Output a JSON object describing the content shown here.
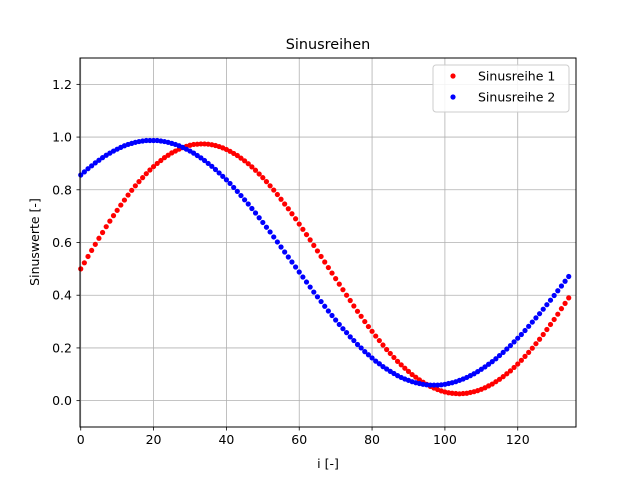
{
  "chart_data": {
    "type": "scatter",
    "title": "Sinusreihen",
    "xlabel": "i [-]",
    "ylabel": "Sinuswerte [-]",
    "xlim": [
      -0.2,
      136
    ],
    "ylim": [
      -0.1,
      1.3
    ],
    "xticks": [
      0,
      20,
      40,
      60,
      80,
      100,
      120
    ],
    "xtick_labels": [
      "0",
      "20",
      "40",
      "60",
      "80",
      "100",
      "120"
    ],
    "yticks": [
      0.0,
      0.2,
      0.4,
      0.6,
      0.8,
      1.0,
      1.2
    ],
    "ytick_labels": [
      "0.0",
      "0.2",
      "0.4",
      "0.6",
      "0.8",
      "1.0",
      "1.2"
    ],
    "grid": true,
    "legend_position": "top-right",
    "point_count": 135,
    "x": [
      0,
      1,
      2,
      3,
      4,
      5,
      6,
      7,
      8,
      9,
      10,
      11,
      12,
      13,
      14,
      15,
      16,
      17,
      18,
      19,
      20,
      21,
      22,
      23,
      24,
      25,
      26,
      27,
      28,
      29,
      30,
      31,
      32,
      33,
      34,
      35,
      36,
      37,
      38,
      39,
      40,
      41,
      42,
      43,
      44,
      45,
      46,
      47,
      48,
      49,
      50,
      51,
      52,
      53,
      54,
      55,
      56,
      57,
      58,
      59,
      60,
      61,
      62,
      63,
      64,
      65,
      66,
      67,
      68,
      69,
      70,
      71,
      72,
      73,
      74,
      75,
      76,
      77,
      78,
      79,
      80,
      81,
      82,
      83,
      84,
      85,
      86,
      87,
      88,
      89,
      90,
      91,
      92,
      93,
      94,
      95,
      96,
      97,
      98,
      99,
      100,
      101,
      102,
      103,
      104,
      105,
      106,
      107,
      108,
      109,
      110,
      111,
      112,
      113,
      114,
      115,
      116,
      117,
      118,
      119,
      120,
      121,
      122,
      123,
      124,
      125,
      126,
      127,
      128,
      129,
      130,
      131,
      132,
      133,
      134
    ],
    "series": [
      {
        "name": "Sinusreihe 1",
        "color": "#ff0000",
        "values": [
          0.5,
          0.523,
          0.547,
          0.57,
          0.593,
          0.616,
          0.638,
          0.66,
          0.681,
          0.702,
          0.722,
          0.742,
          0.761,
          0.78,
          0.798,
          0.815,
          0.831,
          0.846,
          0.861,
          0.875,
          0.888,
          0.9,
          0.911,
          0.922,
          0.931,
          0.94,
          0.947,
          0.954,
          0.96,
          0.965,
          0.969,
          0.972,
          0.973,
          0.974,
          0.974,
          0.973,
          0.971,
          0.968,
          0.964,
          0.959,
          0.953,
          0.946,
          0.938,
          0.93,
          0.92,
          0.91,
          0.899,
          0.887,
          0.874,
          0.86,
          0.846,
          0.831,
          0.815,
          0.799,
          0.782,
          0.764,
          0.746,
          0.728,
          0.709,
          0.69,
          0.67,
          0.65,
          0.63,
          0.61,
          0.589,
          0.568,
          0.547,
          0.526,
          0.505,
          0.484,
          0.463,
          0.442,
          0.421,
          0.4,
          0.38,
          0.359,
          0.339,
          0.32,
          0.3,
          0.281,
          0.263,
          0.245,
          0.228,
          0.211,
          0.194,
          0.179,
          0.164,
          0.149,
          0.136,
          0.123,
          0.111,
          0.099,
          0.089,
          0.079,
          0.07,
          0.062,
          0.054,
          0.048,
          0.042,
          0.037,
          0.033,
          0.03,
          0.028,
          0.027,
          0.026,
          0.027,
          0.028,
          0.031,
          0.034,
          0.038,
          0.043,
          0.049,
          0.056,
          0.063,
          0.072,
          0.081,
          0.091,
          0.102,
          0.113,
          0.126,
          0.139,
          0.153,
          0.168,
          0.183,
          0.199,
          0.216,
          0.233,
          0.251,
          0.27,
          0.289,
          0.308,
          0.328,
          0.349,
          0.369,
          0.39
        ],
        "values_note": ""
      },
      {
        "name": "Sinusreihe 2",
        "color": "#0000ff",
        "values": [
          0.856,
          0.868,
          0.88,
          0.891,
          0.902,
          0.912,
          0.922,
          0.931,
          0.939,
          0.947,
          0.954,
          0.961,
          0.967,
          0.972,
          0.976,
          0.98,
          0.983,
          0.985,
          0.987,
          0.987,
          0.987,
          0.987,
          0.985,
          0.983,
          0.98,
          0.976,
          0.972,
          0.967,
          0.961,
          0.954,
          0.947,
          0.939,
          0.93,
          0.921,
          0.911,
          0.9,
          0.889,
          0.877,
          0.864,
          0.851,
          0.838,
          0.824,
          0.809,
          0.794,
          0.778,
          0.762,
          0.746,
          0.729,
          0.712,
          0.694,
          0.676,
          0.658,
          0.64,
          0.621,
          0.602,
          0.583,
          0.564,
          0.545,
          0.526,
          0.507,
          0.488,
          0.469,
          0.45,
          0.431,
          0.412,
          0.394,
          0.376,
          0.358,
          0.34,
          0.323,
          0.306,
          0.289,
          0.273,
          0.258,
          0.242,
          0.228,
          0.213,
          0.2,
          0.186,
          0.174,
          0.162,
          0.15,
          0.14,
          0.129,
          0.12,
          0.111,
          0.103,
          0.095,
          0.088,
          0.082,
          0.077,
          0.072,
          0.068,
          0.065,
          0.062,
          0.06,
          0.059,
          0.059,
          0.059,
          0.06,
          0.062,
          0.065,
          0.068,
          0.072,
          0.077,
          0.082,
          0.088,
          0.095,
          0.102,
          0.11,
          0.119,
          0.128,
          0.138,
          0.148,
          0.159,
          0.171,
          0.183,
          0.196,
          0.209,
          0.223,
          0.237,
          0.251,
          0.266,
          0.282,
          0.298,
          0.314,
          0.33,
          0.347,
          0.364,
          0.381,
          0.399,
          0.417,
          0.435,
          0.453,
          0.471
        ],
        "values_note": ""
      }
    ]
  }
}
